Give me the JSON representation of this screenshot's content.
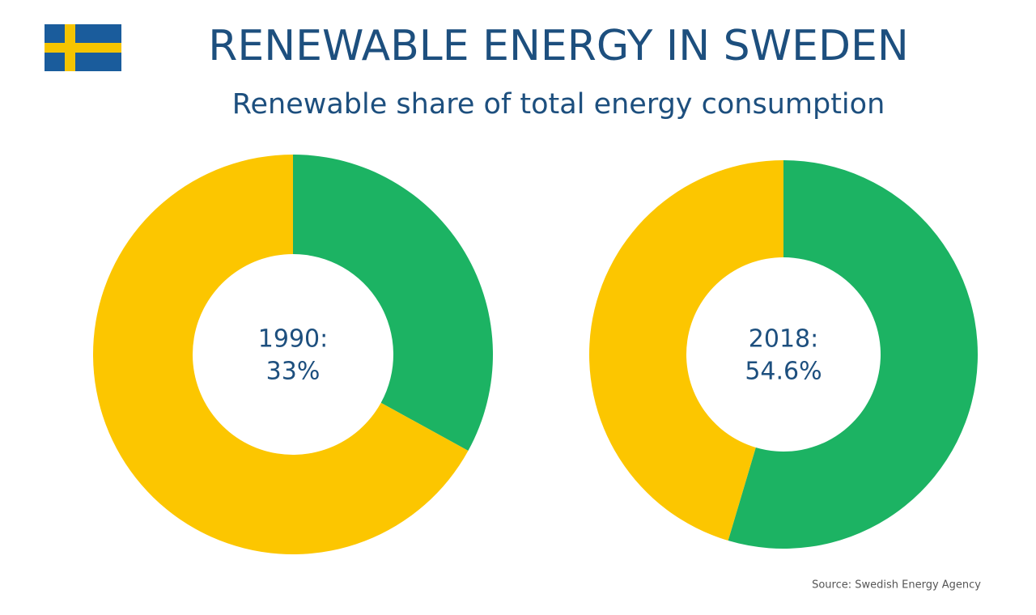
{
  "header": {
    "title": "RENEWABLE ENERGY IN SWEDEN",
    "subtitle": "Renewable share of total energy consumption"
  },
  "source": "Source: Swedish Energy Agency",
  "chart_data": [
    {
      "type": "pie",
      "label": "1990:",
      "values": [
        33,
        67
      ],
      "value_labels": [
        "33%",
        null
      ],
      "colors": [
        "#1cb363",
        "#fcc600"
      ],
      "start_angle": 0,
      "direction": "clockwise"
    },
    {
      "type": "pie",
      "label": "2018:",
      "values": [
        54.6,
        45.4
      ],
      "value_labels": [
        "54.6%",
        null
      ],
      "colors": [
        "#1cb363",
        "#fcc600"
      ],
      "start_angle": 0,
      "direction": "clockwise"
    }
  ]
}
